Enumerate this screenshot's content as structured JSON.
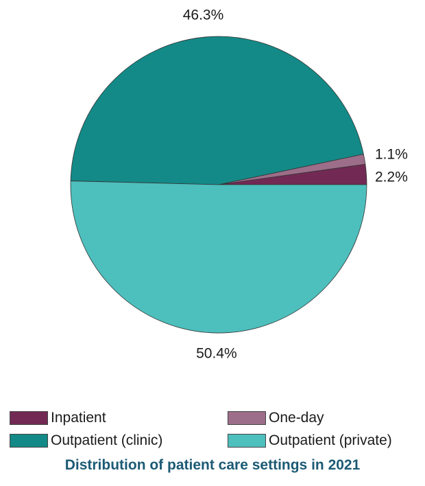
{
  "chart_data": {
    "type": "pie",
    "title": "Distribution of patient care settings in 2021",
    "legend_position": "bottom",
    "categories": [
      "Inpatient",
      "One-day",
      "Outpatient (clinic)",
      "Outpatient (private)"
    ],
    "values": [
      2.2,
      1.1,
      46.3,
      50.4
    ],
    "value_labels": [
      "2.2%",
      "1.1%",
      "46.3%",
      "50.4%"
    ],
    "colors": [
      "#722a55",
      "#9c6e89",
      "#138a87",
      "#4dbfbd"
    ],
    "start": "3 o'clock",
    "direction": "counterclockwise",
    "slice_border_color": "#333333"
  }
}
